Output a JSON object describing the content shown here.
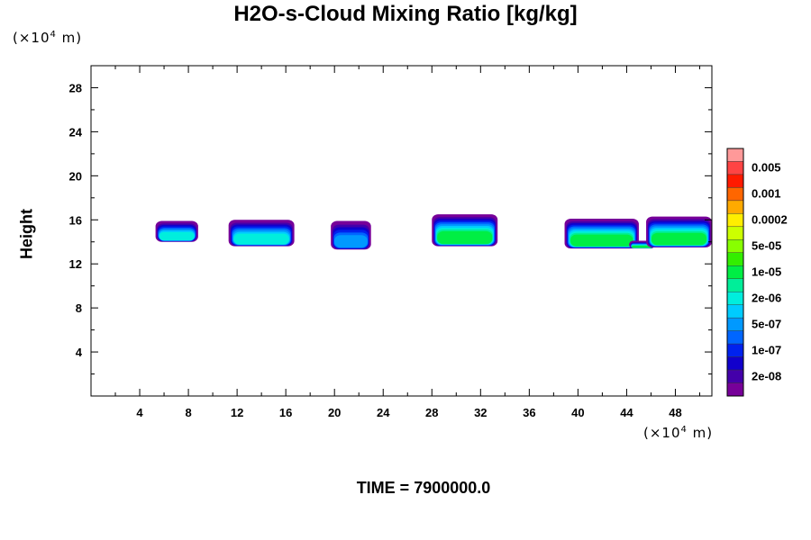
{
  "title": "H2O-s-Cloud Mixing Ratio [kg/kg]",
  "y_unit": {
    "prefix": "(×10",
    "exp": "4",
    "suffix": " m)"
  },
  "x_unit": {
    "prefix": "(×10",
    "exp": "4",
    "suffix": " m)"
  },
  "time_label": "TIME = 7900000.0",
  "chart_data": {
    "type": "heatmap",
    "title": "H2O-s-Cloud Mixing Ratio [kg/kg]",
    "xlabel": "",
    "ylabel": "Height",
    "x_multiplier": "×10^4 m",
    "y_multiplier": "×10^4 m",
    "xlim": [
      0,
      51
    ],
    "ylim": [
      0,
      30
    ],
    "x_ticks": [
      "4",
      "8",
      "12",
      "16",
      "20",
      "24",
      "28",
      "32",
      "36",
      "40",
      "44",
      "48"
    ],
    "y_ticks": [
      "4",
      "8",
      "12",
      "16",
      "20",
      "24",
      "28"
    ],
    "colorbar": {
      "levels": [
        "0.01",
        "0.005",
        "0.002",
        "0.001",
        "0.0005",
        "0.0002",
        "0.0001",
        "5e-05",
        "2e-05",
        "1e-05",
        "5e-06",
        "2e-06",
        "1e-06",
        "5e-07",
        "2e-07",
        "1e-07",
        "5e-08",
        "2e-08",
        "1e-08"
      ],
      "labels": [
        "0.005",
        "0.001",
        "0.0002",
        "5e-05",
        "1e-05",
        "2e-06",
        "5e-07",
        "1e-07",
        "2e-08"
      ],
      "colors": [
        "#ff9999",
        "#ff4444",
        "#ff1a00",
        "#ff6600",
        "#ffaa00",
        "#ffee00",
        "#ccff00",
        "#88ff00",
        "#33ee00",
        "#00ee44",
        "#00ee99",
        "#00eedd",
        "#00ccff",
        "#0099ff",
        "#0066ff",
        "#0022ee",
        "#1100cc",
        "#4400aa",
        "#770099"
      ]
    },
    "clouds": [
      {
        "x_range": [
          5.3,
          8.8
        ],
        "y_range": [
          14.0,
          15.9
        ],
        "max_level": "2e-06"
      },
      {
        "x_range": [
          11.3,
          16.7
        ],
        "y_range": [
          13.6,
          16.0
        ],
        "max_level": "2e-06"
      },
      {
        "x_range": [
          19.7,
          23.0
        ],
        "y_range": [
          13.3,
          15.9
        ],
        "max_level": "5e-07"
      },
      {
        "x_range": [
          28.0,
          33.4
        ],
        "y_range": [
          13.6,
          16.5
        ],
        "max_level": "1e-05"
      },
      {
        "x_range": [
          38.9,
          45.0
        ],
        "y_range": [
          13.4,
          16.1
        ],
        "max_level": "1e-05"
      },
      {
        "x_range": [
          44.2,
          46.3
        ],
        "y_range": [
          13.4,
          14.1
        ],
        "max_level": "1e-05"
      },
      {
        "x_range": [
          45.6,
          51.0
        ],
        "y_range": [
          13.5,
          16.3
        ],
        "max_level": "1e-05"
      }
    ]
  }
}
